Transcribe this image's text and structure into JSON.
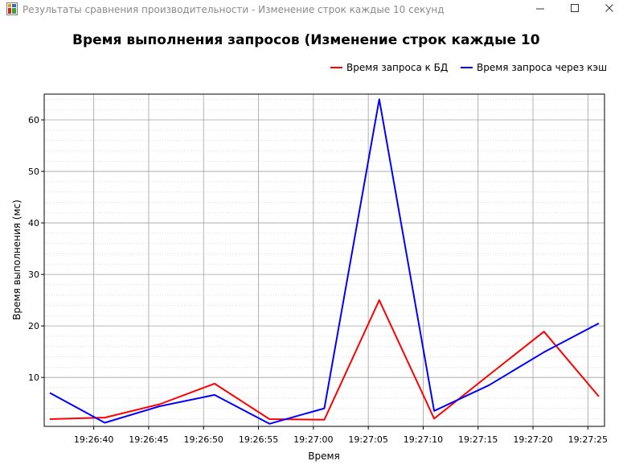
{
  "window": {
    "title": "Результаты сравнения производительности - Изменение строк каждые 10 секунд"
  },
  "chart_data": {
    "type": "line",
    "title": "Время выполнения запросов (Изменение строк каждые 10",
    "xlabel": "Время",
    "ylabel": "Время выполнения (мс)",
    "x_ticks": [
      "19:26:40",
      "19:26:45",
      "19:26:50",
      "19:26:55",
      "19:27:00",
      "19:27:05",
      "19:27:10",
      "19:27:15",
      "19:27:20",
      "19:27:25"
    ],
    "y_ticks": [
      10,
      20,
      30,
      40,
      50,
      60
    ],
    "y_range": [
      0.5,
      65
    ],
    "grid": true,
    "legend_position": "top-right",
    "x": [
      "19:26:36",
      "19:26:41",
      "19:26:46",
      "19:26:51",
      "19:26:56",
      "19:27:01",
      "19:27:06",
      "19:27:11",
      "19:27:16",
      "19:27:21",
      "19:27:26"
    ],
    "series": [
      {
        "name": "Время запроса к БД",
        "color": "#ff0000",
        "values": [
          1.9,
          2.2,
          4.8,
          8.8,
          1.9,
          1.8,
          25.0,
          2.0,
          10.5,
          18.9,
          6.3
        ]
      },
      {
        "name": "Время запроса через кэш",
        "color": "#0000ff",
        "values": [
          7.0,
          1.2,
          4.4,
          6.6,
          1.0,
          4.0,
          64.0,
          3.5,
          8.5,
          14.9,
          20.5
        ]
      }
    ]
  }
}
